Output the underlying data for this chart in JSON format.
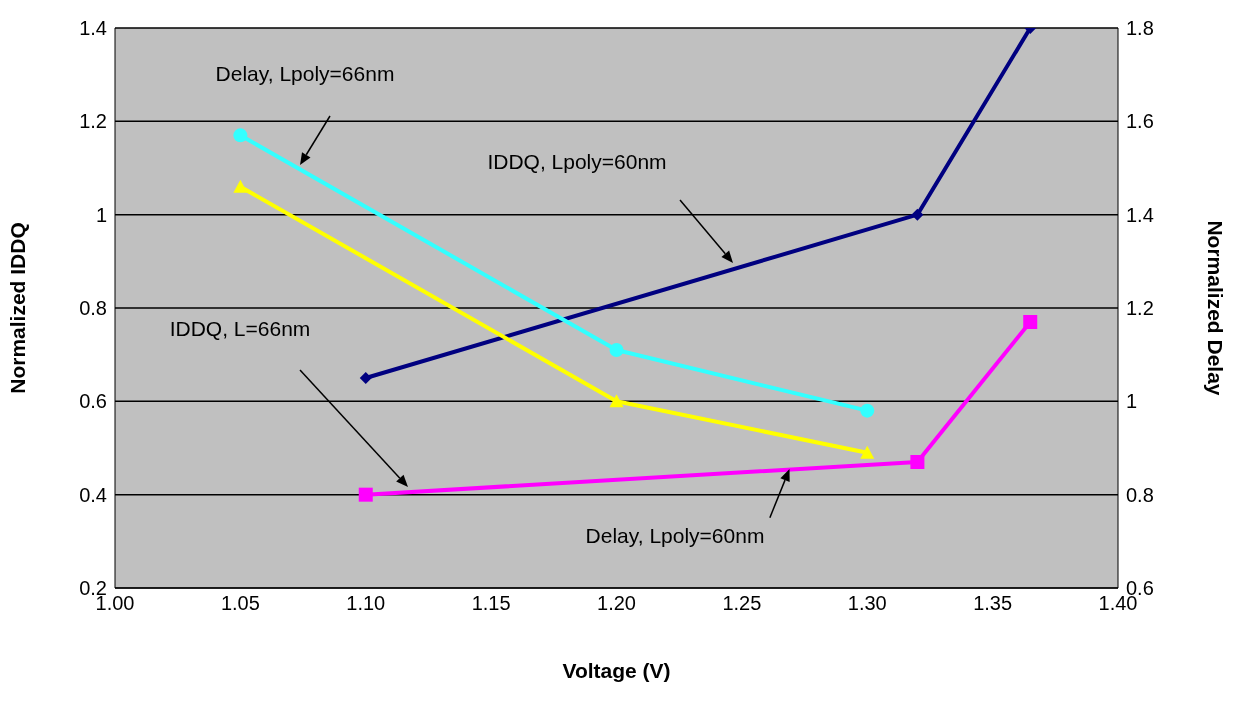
{
  "chart_data": {
    "type": "line",
    "xlabel": "Voltage (V)",
    "ylabel": "Normalized IDDQ",
    "y2label": "Normalized Delay",
    "xlim": [
      1.0,
      1.4
    ],
    "xticks": [
      {
        "value": 1.0,
        "label": "1.00"
      },
      {
        "value": 1.05,
        "label": "1.05"
      },
      {
        "value": 1.1,
        "label": "1.10"
      },
      {
        "value": 1.15,
        "label": "1.15"
      },
      {
        "value": 1.2,
        "label": "1.20"
      },
      {
        "value": 1.25,
        "label": "1.25"
      },
      {
        "value": 1.3,
        "label": "1.30"
      },
      {
        "value": 1.35,
        "label": "1.35"
      },
      {
        "value": 1.4,
        "label": "1.40"
      }
    ],
    "ylim": [
      0.2,
      1.4
    ],
    "yticks": [
      0.2,
      0.4,
      0.6,
      0.8,
      1,
      1.2,
      1.4
    ],
    "y2lim": [
      0.6,
      1.8
    ],
    "y2ticks": [
      0.6,
      0.8,
      1,
      1.2,
      1.4,
      1.6,
      1.8
    ],
    "grid": "y",
    "series": [
      {
        "color": "#000080",
        "marker": "diamond",
        "x": [
          1.1,
          1.32,
          1.365
        ],
        "values": [
          0.65,
          1.0,
          1.4
        ]
      },
      {
        "color": "#ff00ff",
        "marker": "square",
        "x": [
          1.1,
          1.32,
          1.365
        ],
        "values": [
          0.4,
          0.47,
          0.77
        ]
      },
      {
        "color": "#33ffff",
        "marker": "circle",
        "axis": "y2",
        "x": [
          1.05,
          1.2,
          1.3
        ],
        "values": [
          1.57,
          1.11,
          0.98
        ]
      },
      {
        "color": "#ffff00",
        "marker": "triangle",
        "axis": "y2",
        "x": [
          1.05,
          1.2,
          1.3
        ],
        "values": [
          1.46,
          1.0,
          0.89
        ]
      }
    ],
    "annotations": [
      "Delay, Lpoly=66nm",
      "IDDQ, Lpoly=60nm",
      "IDDQ, L=66nm",
      {
        "text": "Delay, Lpoly=60nm",
        "x": 1.269,
        "y": 0.455
      }
    ]
  }
}
